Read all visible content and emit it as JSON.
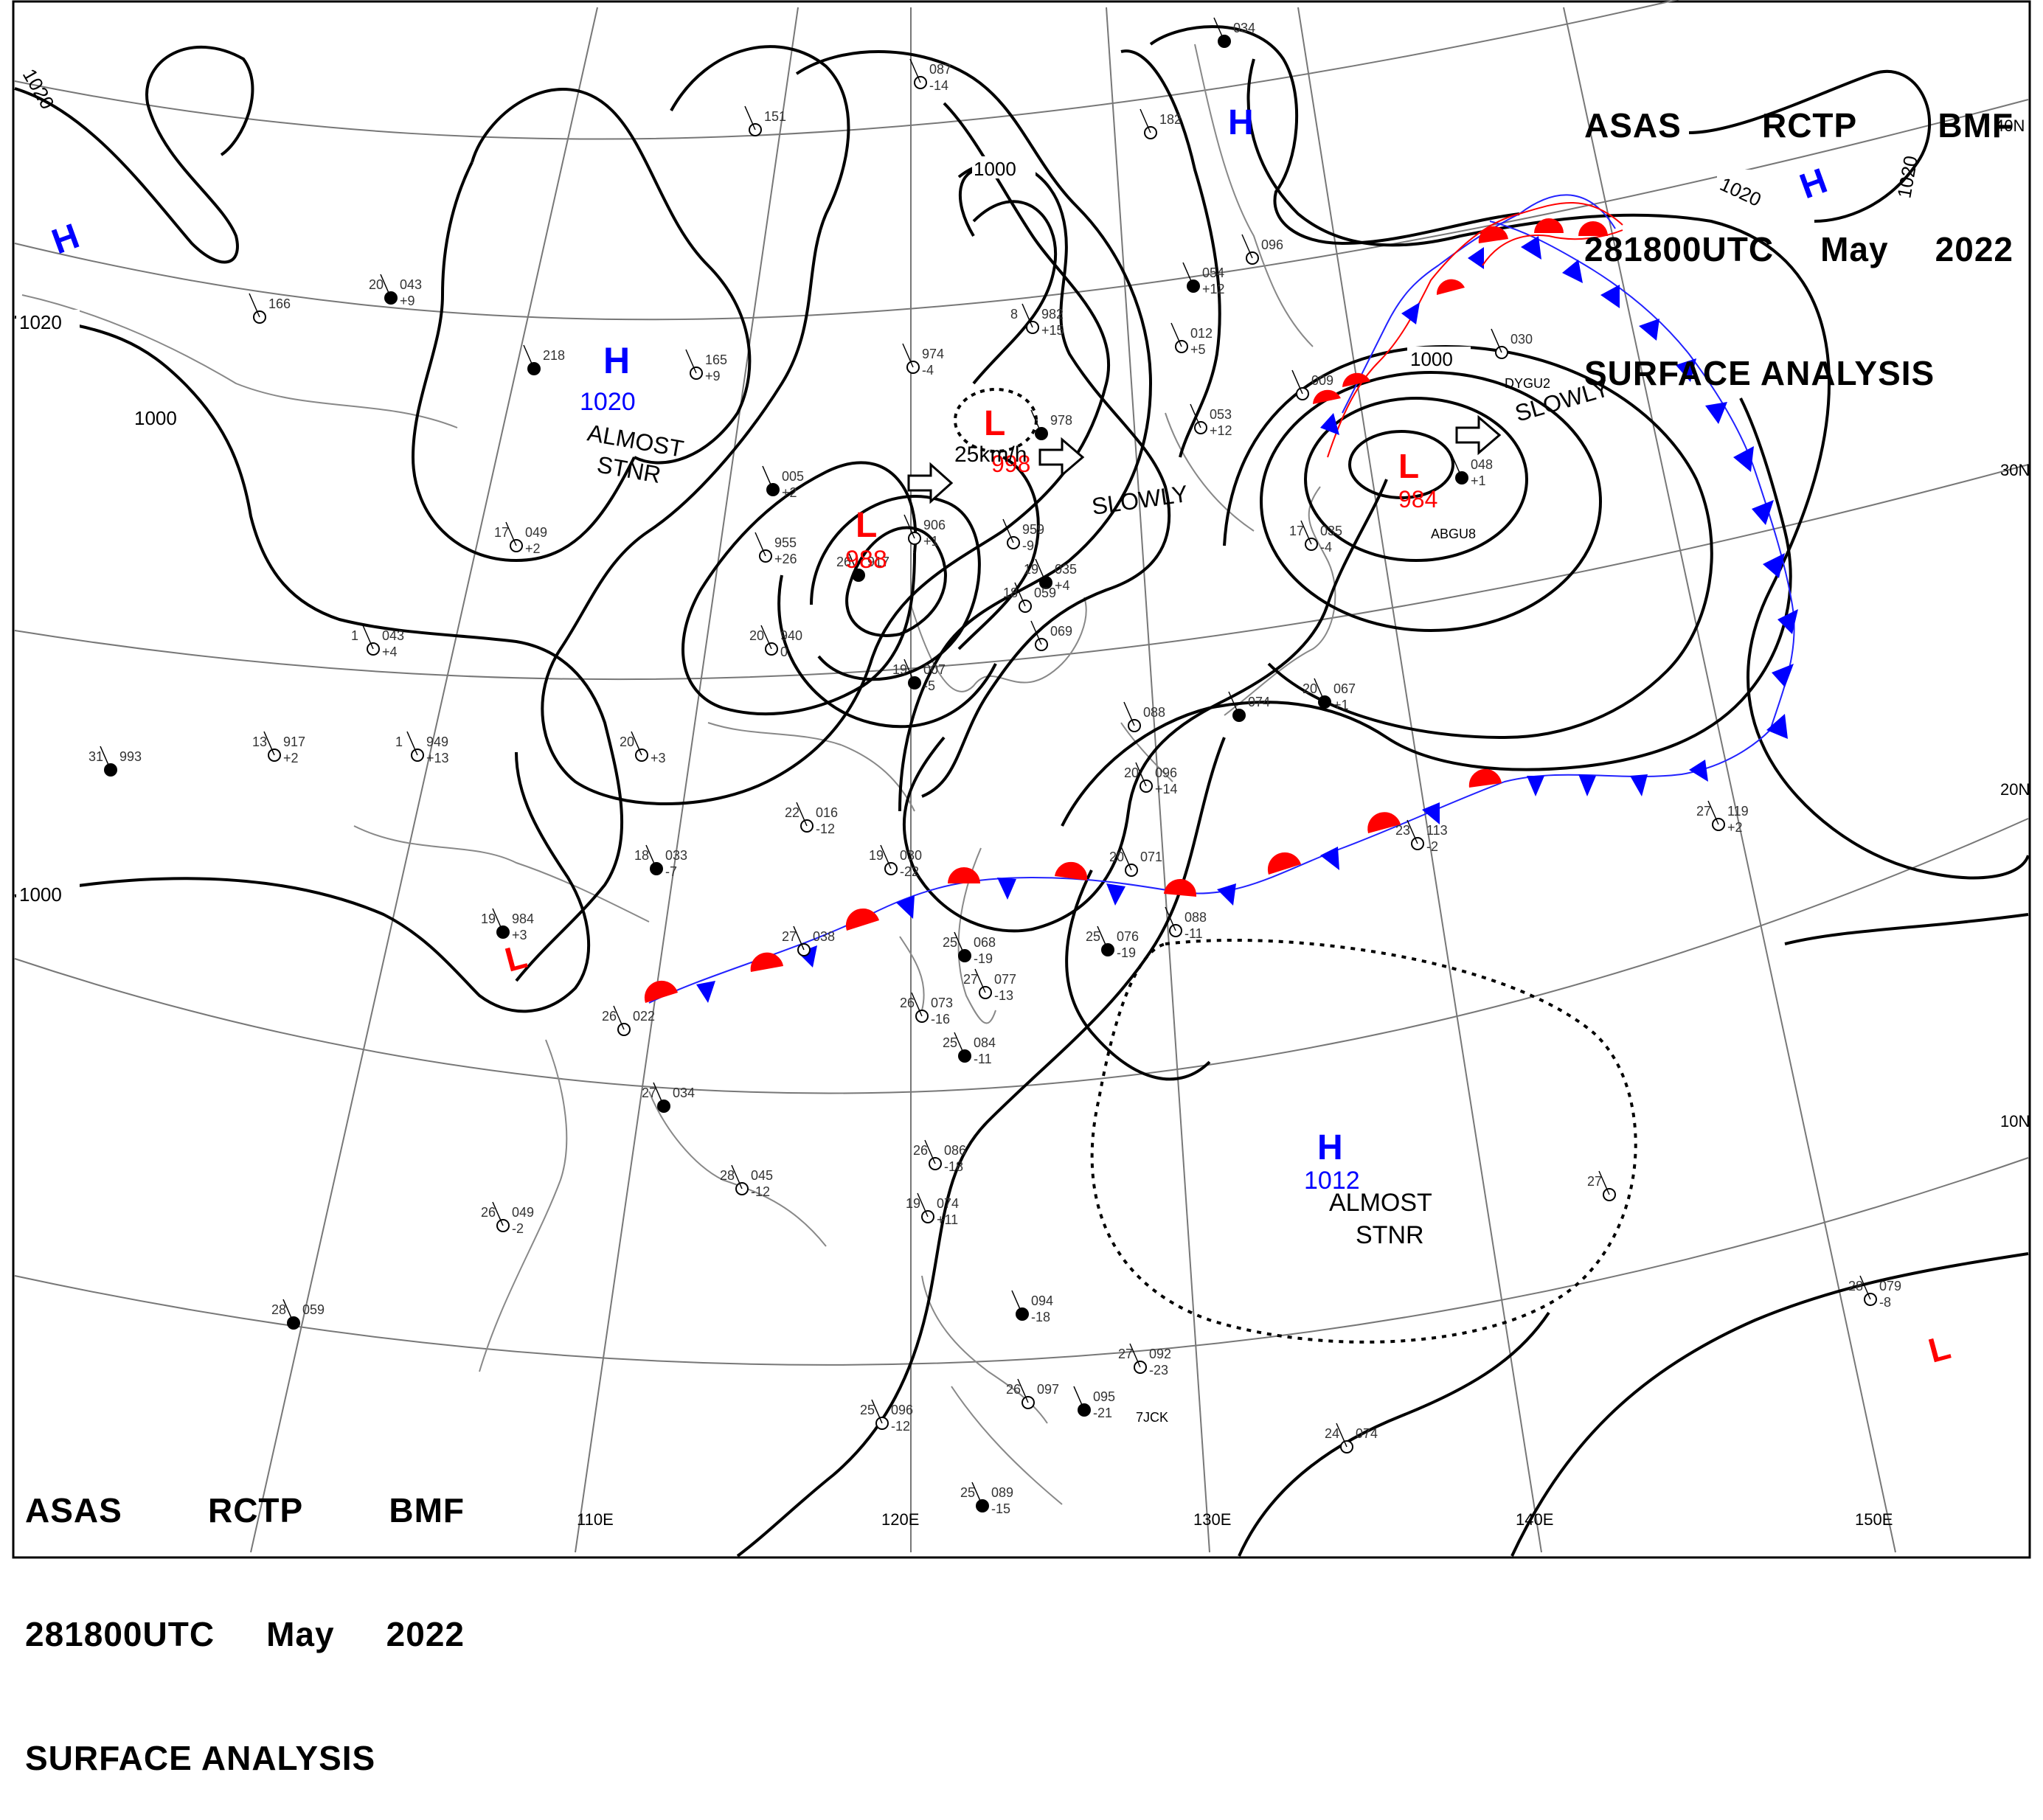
{
  "header": {
    "agency": [
      "ASAS",
      "RCTP",
      "BMF"
    ],
    "time": [
      "281800UTC",
      "May",
      "2022"
    ],
    "title": "SURFACE ANALYSIS"
  },
  "colors": {
    "low": "#ff0000",
    "high": "#0000ff",
    "warm_front": "#ff0000",
    "cold_front": "#0000ff",
    "isobar": "#000000"
  },
  "latitude_labels": [
    "40N",
    "30N",
    "20N",
    "10N"
  ],
  "longitude_labels": [
    "110E",
    "120E",
    "130E",
    "140E",
    "150E"
  ],
  "isobar_labels": [
    "1020",
    "1020",
    "1000",
    "1000",
    "1000",
    "1000",
    "1020",
    "1020",
    "1000"
  ],
  "systems": [
    {
      "type": "H",
      "value": "1020",
      "note": "ALMOST STNR"
    },
    {
      "type": "L",
      "value": "988"
    },
    {
      "type": "L",
      "value": "998",
      "note": "25km/h"
    },
    {
      "type": "L",
      "value": "984"
    },
    {
      "type": "H",
      "value": "1012",
      "note": "ALMOST STNR"
    },
    {
      "type": "H",
      "value": ""
    },
    {
      "type": "H",
      "value": ""
    },
    {
      "type": "H",
      "value": ""
    },
    {
      "type": "L",
      "value": ""
    },
    {
      "type": "L",
      "value": ""
    }
  ],
  "motion_labels": [
    "SLOWLY",
    "SLOWLY"
  ],
  "stations": [
    {
      "temp": "20",
      "press": "043",
      "tend": "+9"
    },
    {
      "temp": "17",
      "press": "049",
      "tend": "+2"
    },
    {
      "temp": "13",
      "press": "917",
      "tend": "+2"
    },
    {
      "temp": "31",
      "press": "993",
      "tend": ""
    },
    {
      "temp": "1",
      "press": "949",
      "tend": "+13"
    },
    {
      "temp": "1",
      "press": "043",
      "tend": "+4"
    },
    {
      "temp": "19",
      "press": "984",
      "tend": "+3"
    },
    {
      "temp": "20",
      "press": "",
      "tend": "+3"
    },
    {
      "temp": "22",
      "press": "016",
      "tend": "-12"
    },
    {
      "temp": "18",
      "press": "033",
      "tend": "-7"
    },
    {
      "temp": "19",
      "press": "030",
      "tend": "-22"
    },
    {
      "temp": "20",
      "press": "940",
      "tend": "0"
    },
    {
      "temp": "26",
      "press": "917",
      "tend": ""
    },
    {
      "temp": "",
      "press": "906",
      "tend": "+1"
    },
    {
      "temp": "",
      "press": "959",
      "tend": "-9"
    },
    {
      "temp": "19",
      "press": "035",
      "tend": "+4"
    },
    {
      "temp": "18",
      "press": "059",
      "tend": ""
    },
    {
      "temp": "",
      "press": "069",
      "tend": ""
    },
    {
      "temp": "19",
      "press": "007",
      "tend": "-5"
    },
    {
      "temp": "",
      "press": "974",
      "tend": "-4"
    },
    {
      "temp": "8",
      "press": "982",
      "tend": "+15"
    },
    {
      "temp": "",
      "press": "978",
      "tend": ""
    },
    {
      "temp": "",
      "press": "053",
      "tend": "+12"
    },
    {
      "temp": "",
      "press": "012",
      "tend": "+5"
    },
    {
      "temp": "",
      "press": "054",
      "tend": "+12"
    },
    {
      "temp": "",
      "press": "096",
      "tend": ""
    },
    {
      "temp": "",
      "press": "182",
      "tend": ""
    },
    {
      "temp": "",
      "press": "034",
      "tend": ""
    },
    {
      "temp": "",
      "press": "087",
      "tend": "-14"
    },
    {
      "temp": "",
      "press": "151",
      "tend": ""
    },
    {
      "temp": "",
      "press": "218",
      "tend": ""
    },
    {
      "temp": "",
      "press": "166",
      "tend": ""
    },
    {
      "temp": "",
      "press": "165",
      "tend": "+9"
    },
    {
      "temp": "",
      "press": "005",
      "tend": "+2"
    },
    {
      "temp": "",
      "press": "955",
      "tend": "+26"
    },
    {
      "temp": "",
      "press": "030",
      "tend": ""
    },
    {
      "temp": "",
      "press": "048",
      "tend": "+1"
    },
    {
      "temp": "",
      "press": "009",
      "tend": ""
    },
    {
      "temp": "17",
      "press": "035",
      "tend": "-4"
    },
    {
      "temp": "20",
      "press": "067",
      "tend": "+1"
    },
    {
      "temp": "",
      "press": "088",
      "tend": ""
    },
    {
      "temp": "20",
      "press": "096",
      "tend": "+14"
    },
    {
      "temp": "",
      "press": "074",
      "tend": ""
    },
    {
      "temp": "23",
      "press": "113",
      "tend": "-2"
    },
    {
      "temp": "27",
      "press": "119",
      "tend": "+2"
    },
    {
      "temp": "25",
      "press": "076",
      "tend": "-19"
    },
    {
      "temp": "",
      "press": "088",
      "tend": "-11"
    },
    {
      "temp": "20",
      "press": "071",
      "tend": ""
    },
    {
      "temp": "25",
      "press": "068",
      "tend": "-19"
    },
    {
      "temp": "27",
      "press": "077",
      "tend": "-13"
    },
    {
      "temp": "26",
      "press": "073",
      "tend": "-16"
    },
    {
      "temp": "25",
      "press": "084",
      "tend": "-11"
    },
    {
      "temp": "27",
      "press": "038",
      "tend": ""
    },
    {
      "temp": "26",
      "press": "022",
      "tend": ""
    },
    {
      "temp": "27",
      "press": "034",
      "tend": ""
    },
    {
      "temp": "28",
      "press": "045",
      "tend": "-12"
    },
    {
      "temp": "26",
      "press": "049",
      "tend": "-2"
    },
    {
      "temp": "28",
      "press": "059",
      "tend": ""
    },
    {
      "temp": "26",
      "press": "086",
      "tend": "-18"
    },
    {
      "temp": "19",
      "press": "074",
      "tend": "+11"
    },
    {
      "temp": "",
      "press": "094",
      "tend": "-18"
    },
    {
      "temp": "25",
      "press": "096",
      "tend": "-12"
    },
    {
      "temp": "26",
      "press": "097",
      "tend": ""
    },
    {
      "temp": "",
      "press": "095",
      "tend": "-21"
    },
    {
      "temp": "27",
      "press": "092",
      "tend": "-23"
    },
    {
      "temp": "24",
      "press": "074",
      "tend": ""
    },
    {
      "temp": "25",
      "press": "089",
      "tend": "-15"
    },
    {
      "temp": "27",
      "press": "",
      "tend": ""
    },
    {
      "temp": "28",
      "press": "079",
      "tend": "-8"
    }
  ],
  "ship_ids": [
    "ABGU8",
    "DYGU2",
    "7JCK"
  ]
}
